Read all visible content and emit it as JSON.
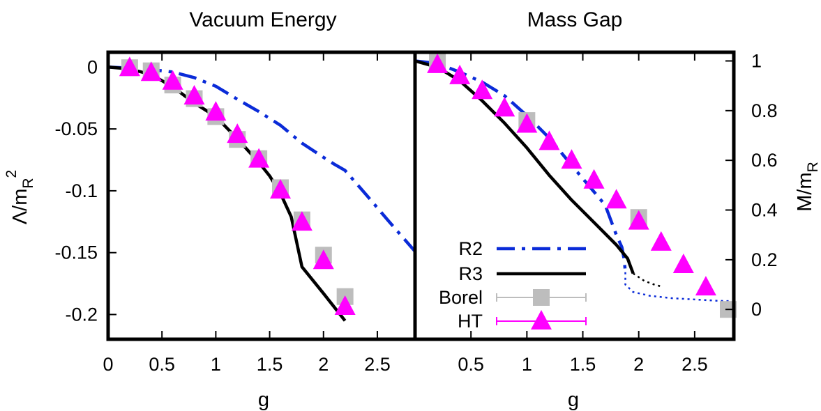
{
  "chart_data": [
    {
      "type": "line",
      "title": "Vacuum Energy",
      "xlabel": "g",
      "ylabel": "Λ/m_R^2",
      "ylabel_main": "Λ/m",
      "ylabel_sub": "R",
      "ylabel_sup": "2",
      "xlim": [
        0,
        2.85
      ],
      "ylim": [
        -0.22,
        0.012
      ],
      "x_ticks": [
        0,
        0.5,
        1,
        1.5,
        2,
        2.5
      ],
      "x_tick_labels": [
        "0",
        "0.5",
        "1",
        "1.5",
        "2",
        "2.5"
      ],
      "y_ticks": [
        0,
        -0.05,
        -0.1,
        -0.15,
        -0.2
      ],
      "y_tick_labels": [
        "0",
        "-0.05",
        "-0.1",
        "-0.15",
        "-0.2"
      ],
      "grid": false,
      "series": [
        {
          "name": "R2",
          "style": "dashdot",
          "color": "#0a2bd8",
          "x": [
            0,
            0.2,
            0.4,
            0.6,
            0.8,
            1.0,
            1.2,
            1.4,
            1.6,
            1.8,
            2.0,
            2.1,
            2.2,
            2.4,
            2.6,
            2.85
          ],
          "y": [
            0,
            -0.0008,
            -0.002,
            -0.004,
            -0.0085,
            -0.0155,
            -0.026,
            -0.036,
            -0.047,
            -0.0615,
            -0.073,
            -0.0785,
            -0.0835,
            -0.1035,
            -0.124,
            -0.149
          ]
        },
        {
          "name": "R3",
          "style": "solid",
          "color": "#000000",
          "x": [
            0,
            0.2,
            0.4,
            0.6,
            0.8,
            1.0,
            1.2,
            1.4,
            1.5,
            1.6,
            1.7,
            1.8,
            2.0,
            2.2
          ],
          "y": [
            0,
            -0.0015,
            -0.006,
            -0.016,
            -0.029,
            -0.04,
            -0.058,
            -0.077,
            -0.088,
            -0.102,
            -0.121,
            -0.1615,
            -0.183,
            -0.205
          ]
        },
        {
          "name": "Borel",
          "style": "markers",
          "marker": "square",
          "color": "#bdbdbd",
          "x": [
            0.2,
            0.4,
            0.6,
            0.8,
            1.0,
            1.2,
            1.4,
            1.6,
            1.8,
            2.0,
            2.2
          ],
          "y": [
            -0.0005,
            -0.003,
            -0.0145,
            -0.0255,
            -0.04,
            -0.0585,
            -0.074,
            -0.0975,
            -0.1235,
            -0.152,
            -0.1855
          ]
        },
        {
          "name": "HT",
          "style": "markers",
          "marker": "triangle",
          "color": "#ff00ff",
          "x": [
            0.2,
            0.4,
            0.6,
            0.8,
            1.0,
            1.2,
            1.4,
            1.6,
            1.8,
            2.0,
            2.2
          ],
          "y": [
            -0.0005,
            -0.0045,
            -0.0115,
            -0.0235,
            -0.0365,
            -0.0545,
            -0.0745,
            -0.0995,
            -0.1255,
            -0.1565,
            -0.1935
          ]
        }
      ]
    },
    {
      "type": "line",
      "title": "Mass Gap",
      "xlabel": "g",
      "ylabel": "M/m_R",
      "ylabel_main": "M/m",
      "ylabel_sub": "R",
      "xlim": [
        0,
        2.85
      ],
      "ylim": [
        -0.12,
        1.035
      ],
      "x_ticks": [
        0.5,
        1,
        1.5,
        2,
        2.5
      ],
      "x_tick_labels": [
        "0.5",
        "1",
        "1.5",
        "2",
        "2.5"
      ],
      "y_ticks": [
        0,
        0.2,
        0.4,
        0.6,
        0.8,
        1
      ],
      "y_tick_labels": [
        "0",
        "0.2",
        "0.4",
        "0.6",
        "0.8",
        "1"
      ],
      "grid": false,
      "legend": "bottom-left",
      "series": [
        {
          "name": "R2",
          "style": "dashdot",
          "color": "#0a2bd8",
          "x": [
            0,
            0.2,
            0.4,
            0.6,
            0.8,
            1.0,
            1.2,
            1.4,
            1.55,
            1.7,
            1.8,
            1.85,
            1.87,
            1.88
          ],
          "y": [
            1,
            0.99,
            0.955,
            0.915,
            0.86,
            0.78,
            0.69,
            0.58,
            0.5,
            0.42,
            0.3,
            0.25,
            0.2,
            0.15
          ]
        },
        {
          "name": "R2-continuation",
          "style": "dotted",
          "color": "#0a2bd8",
          "x": [
            1.88,
            1.88,
            1.95,
            2.1,
            2.3,
            2.5,
            2.7,
            2.85
          ],
          "y": [
            0.15,
            0.1,
            0.07,
            0.055,
            0.045,
            0.04,
            0.035,
            0.033
          ]
        },
        {
          "name": "R3",
          "style": "solid",
          "color": "#000000",
          "x": [
            0,
            0.2,
            0.4,
            0.6,
            0.8,
            1.0,
            1.2,
            1.4,
            1.6,
            1.8,
            1.9,
            1.95
          ],
          "y": [
            1,
            0.975,
            0.92,
            0.84,
            0.75,
            0.65,
            0.54,
            0.44,
            0.35,
            0.26,
            0.205,
            0.145
          ]
        },
        {
          "name": "R3-continuation",
          "style": "dotted",
          "color": "#000000",
          "x": [
            1.95,
            2.05,
            2.15,
            2.2
          ],
          "y": [
            0.145,
            0.115,
            0.098,
            0.093
          ]
        },
        {
          "name": "Borel",
          "style": "markers",
          "marker": "square",
          "color": "#bdbdbd",
          "x": [
            0.2,
            1.0,
            2.0,
            2.8
          ],
          "y": [
            0.995,
            0.76,
            0.37,
            0.0
          ]
        },
        {
          "name": "HT",
          "style": "markers",
          "marker": "triangle",
          "color": "#ff00ff",
          "x": [
            0.2,
            0.4,
            0.6,
            0.8,
            1.0,
            1.2,
            1.4,
            1.6,
            1.8,
            2.0,
            2.2,
            2.4,
            2.6
          ],
          "y": [
            0.985,
            0.94,
            0.88,
            0.81,
            0.745,
            0.675,
            0.6,
            0.52,
            0.44,
            0.355,
            0.27,
            0.18,
            0.09
          ]
        }
      ]
    }
  ],
  "legend": [
    {
      "label": "R2",
      "style": "dashdot",
      "color": "#0a2bd8"
    },
    {
      "label": "R3",
      "style": "solid",
      "color": "#000000"
    },
    {
      "label": "Borel",
      "style": "markers",
      "marker": "square",
      "color": "#bdbdbd"
    },
    {
      "label": "HT",
      "style": "markers",
      "marker": "triangle",
      "color": "#ff00ff"
    }
  ]
}
